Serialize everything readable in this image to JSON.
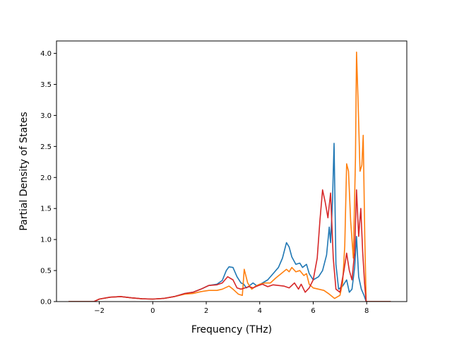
{
  "chart_data": {
    "type": "line",
    "title": "",
    "xlabel": "Frequency (THz)",
    "ylabel": "Partial Density of States",
    "xlim": [
      -3.6,
      9.5
    ],
    "ylim": [
      0,
      4.2
    ],
    "xticks": [
      -2,
      0,
      2,
      4,
      6,
      8
    ],
    "yticks": [
      0.0,
      0.5,
      1.0,
      1.5,
      2.0,
      2.5,
      3.0,
      3.5,
      4.0
    ],
    "xtick_labels": [
      "−2",
      "0",
      "2",
      "4",
      "6",
      "8"
    ],
    "ytick_labels": [
      "0.0",
      "0.5",
      "1.0",
      "1.5",
      "2.0",
      "2.5",
      "3.0",
      "3.5",
      "4.0"
    ],
    "grid": false,
    "legend": false,
    "series": [
      {
        "color": "#1f77b4",
        "points": [
          [
            -3.15,
            0
          ],
          [
            -2.2,
            0
          ],
          [
            -2.0,
            0.04
          ],
          [
            -1.6,
            0.07
          ],
          [
            -1.2,
            0.08
          ],
          [
            -0.8,
            0.06
          ],
          [
            -0.4,
            0.045
          ],
          [
            0,
            0.04
          ],
          [
            0.4,
            0.05
          ],
          [
            0.8,
            0.08
          ],
          [
            1.2,
            0.13
          ],
          [
            1.5,
            0.15
          ],
          [
            1.8,
            0.2
          ],
          [
            2.1,
            0.26
          ],
          [
            2.4,
            0.28
          ],
          [
            2.6,
            0.34
          ],
          [
            2.75,
            0.5
          ],
          [
            2.85,
            0.56
          ],
          [
            3.0,
            0.55
          ],
          [
            3.15,
            0.4
          ],
          [
            3.3,
            0.3
          ],
          [
            3.4,
            0.28
          ],
          [
            3.5,
            0.22
          ],
          [
            3.6,
            0.25
          ],
          [
            3.75,
            0.3
          ],
          [
            3.9,
            0.25
          ],
          [
            4.1,
            0.3
          ],
          [
            4.3,
            0.35
          ],
          [
            4.5,
            0.45
          ],
          [
            4.7,
            0.55
          ],
          [
            4.85,
            0.7
          ],
          [
            5.0,
            0.95
          ],
          [
            5.1,
            0.88
          ],
          [
            5.2,
            0.72
          ],
          [
            5.35,
            0.6
          ],
          [
            5.5,
            0.62
          ],
          [
            5.6,
            0.55
          ],
          [
            5.75,
            0.6
          ],
          [
            5.85,
            0.45
          ],
          [
            6.0,
            0.35
          ],
          [
            6.2,
            0.4
          ],
          [
            6.35,
            0.5
          ],
          [
            6.5,
            0.75
          ],
          [
            6.6,
            1.2
          ],
          [
            6.65,
            0.95
          ],
          [
            6.72,
            1.6
          ],
          [
            6.78,
            2.55
          ],
          [
            6.85,
            0.6
          ],
          [
            6.95,
            0.2
          ],
          [
            7.1,
            0.25
          ],
          [
            7.25,
            0.35
          ],
          [
            7.35,
            0.15
          ],
          [
            7.45,
            0.2
          ],
          [
            7.55,
            0.55
          ],
          [
            7.62,
            1.05
          ],
          [
            7.7,
            0.4
          ],
          [
            7.8,
            0.2
          ],
          [
            7.9,
            0.1
          ],
          [
            7.98,
            0
          ],
          [
            8.9,
            0
          ]
        ]
      },
      {
        "color": "#ff7f0e",
        "points": [
          [
            -3.15,
            0
          ],
          [
            -2.2,
            0
          ],
          [
            -2.0,
            0.04
          ],
          [
            -1.6,
            0.07
          ],
          [
            -1.2,
            0.08
          ],
          [
            -0.8,
            0.06
          ],
          [
            -0.4,
            0.045
          ],
          [
            0,
            0.04
          ],
          [
            0.4,
            0.05
          ],
          [
            0.8,
            0.08
          ],
          [
            1.2,
            0.12
          ],
          [
            1.5,
            0.13
          ],
          [
            1.8,
            0.16
          ],
          [
            2.1,
            0.18
          ],
          [
            2.4,
            0.18
          ],
          [
            2.6,
            0.2
          ],
          [
            2.85,
            0.25
          ],
          [
            3.0,
            0.2
          ],
          [
            3.2,
            0.12
          ],
          [
            3.35,
            0.1
          ],
          [
            3.42,
            0.52
          ],
          [
            3.55,
            0.3
          ],
          [
            3.7,
            0.2
          ],
          [
            3.85,
            0.25
          ],
          [
            4.0,
            0.28
          ],
          [
            4.2,
            0.3
          ],
          [
            4.4,
            0.3
          ],
          [
            4.6,
            0.38
          ],
          [
            4.8,
            0.45
          ],
          [
            5.0,
            0.52
          ],
          [
            5.1,
            0.48
          ],
          [
            5.2,
            0.55
          ],
          [
            5.35,
            0.48
          ],
          [
            5.5,
            0.5
          ],
          [
            5.65,
            0.42
          ],
          [
            5.75,
            0.45
          ],
          [
            5.85,
            0.28
          ],
          [
            6.0,
            0.22
          ],
          [
            6.2,
            0.2
          ],
          [
            6.4,
            0.18
          ],
          [
            6.6,
            0.12
          ],
          [
            6.8,
            0.05
          ],
          [
            7.0,
            0.1
          ],
          [
            7.1,
            0.3
          ],
          [
            7.18,
            0.9
          ],
          [
            7.25,
            2.22
          ],
          [
            7.32,
            2.1
          ],
          [
            7.4,
            1.3
          ],
          [
            7.5,
            0.7
          ],
          [
            7.58,
            2.3
          ],
          [
            7.62,
            4.02
          ],
          [
            7.68,
            3.2
          ],
          [
            7.75,
            2.1
          ],
          [
            7.82,
            2.2
          ],
          [
            7.87,
            2.68
          ],
          [
            7.93,
            1.0
          ],
          [
            7.98,
            0
          ],
          [
            8.9,
            0
          ]
        ]
      },
      {
        "color": "#d62728",
        "points": [
          [
            -3.15,
            0
          ],
          [
            -2.2,
            0
          ],
          [
            -2.0,
            0.04
          ],
          [
            -1.6,
            0.07
          ],
          [
            -1.2,
            0.08
          ],
          [
            -0.8,
            0.06
          ],
          [
            -0.4,
            0.045
          ],
          [
            0,
            0.04
          ],
          [
            0.4,
            0.05
          ],
          [
            0.8,
            0.08
          ],
          [
            1.2,
            0.13
          ],
          [
            1.5,
            0.15
          ],
          [
            1.8,
            0.2
          ],
          [
            2.1,
            0.26
          ],
          [
            2.4,
            0.27
          ],
          [
            2.6,
            0.3
          ],
          [
            2.8,
            0.4
          ],
          [
            3.0,
            0.35
          ],
          [
            3.15,
            0.22
          ],
          [
            3.3,
            0.2
          ],
          [
            3.45,
            0.22
          ],
          [
            3.6,
            0.24
          ],
          [
            3.75,
            0.22
          ],
          [
            3.9,
            0.25
          ],
          [
            4.1,
            0.28
          ],
          [
            4.3,
            0.24
          ],
          [
            4.5,
            0.27
          ],
          [
            4.7,
            0.26
          ],
          [
            4.9,
            0.25
          ],
          [
            5.1,
            0.22
          ],
          [
            5.3,
            0.3
          ],
          [
            5.45,
            0.2
          ],
          [
            5.55,
            0.28
          ],
          [
            5.7,
            0.15
          ],
          [
            5.85,
            0.22
          ],
          [
            6.0,
            0.35
          ],
          [
            6.15,
            0.7
          ],
          [
            6.25,
            1.3
          ],
          [
            6.35,
            1.8
          ],
          [
            6.45,
            1.6
          ],
          [
            6.55,
            1.35
          ],
          [
            6.65,
            1.75
          ],
          [
            6.75,
            0.7
          ],
          [
            6.85,
            0.2
          ],
          [
            7.0,
            0.15
          ],
          [
            7.15,
            0.5
          ],
          [
            7.25,
            0.78
          ],
          [
            7.35,
            0.5
          ],
          [
            7.45,
            0.35
          ],
          [
            7.55,
            0.8
          ],
          [
            7.62,
            1.8
          ],
          [
            7.7,
            1.05
          ],
          [
            7.78,
            1.5
          ],
          [
            7.85,
            0.8
          ],
          [
            7.92,
            0.3
          ],
          [
            7.98,
            0
          ],
          [
            8.9,
            0
          ]
        ]
      }
    ]
  }
}
